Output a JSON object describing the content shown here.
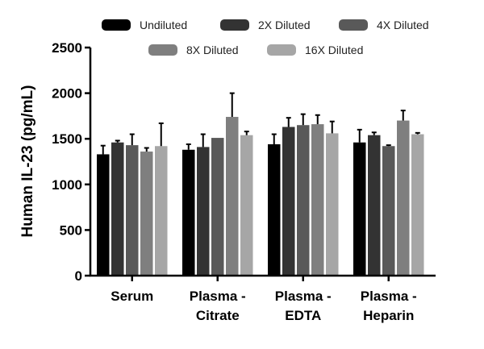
{
  "chart_data": {
    "type": "bar",
    "title": "",
    "xlabel": "",
    "ylabel": "Human IL-23 (pg/mL)",
    "ylim": [
      0,
      2500
    ],
    "yticks": [
      "0",
      "500",
      "1000",
      "1500",
      "2000",
      "2500"
    ],
    "categories": [
      {
        "line1": "Serum",
        "line2": ""
      },
      {
        "line1": "Plasma -",
        "line2": "Citrate"
      },
      {
        "line1": "Plasma -",
        "line2": "EDTA"
      },
      {
        "line1": "Plasma -",
        "line2": "Heparin"
      }
    ],
    "legend_position": "top",
    "series": [
      {
        "name": "Undiluted",
        "color": "#000000",
        "values": [
          1330,
          1380,
          1440,
          1460
        ],
        "errors": [
          95,
          60,
          110,
          140
        ]
      },
      {
        "name": "2X Diluted",
        "color": "#333333",
        "values": [
          1460,
          1410,
          1630,
          1540
        ],
        "errors": [
          20,
          140,
          100,
          30
        ]
      },
      {
        "name": "4X Diluted",
        "color": "#595959",
        "values": [
          1430,
          1510,
          1650,
          1420
        ],
        "errors": [
          120,
          0,
          120,
          10
        ]
      },
      {
        "name": "8X Diluted",
        "color": "#7f7f7f",
        "values": [
          1360,
          1740,
          1660,
          1700
        ],
        "errors": [
          40,
          260,
          100,
          110
        ]
      },
      {
        "name": "16X Diluted",
        "color": "#a6a6a6",
        "values": [
          1420,
          1540,
          1560,
          1550
        ],
        "errors": [
          250,
          40,
          130,
          15
        ]
      }
    ]
  }
}
